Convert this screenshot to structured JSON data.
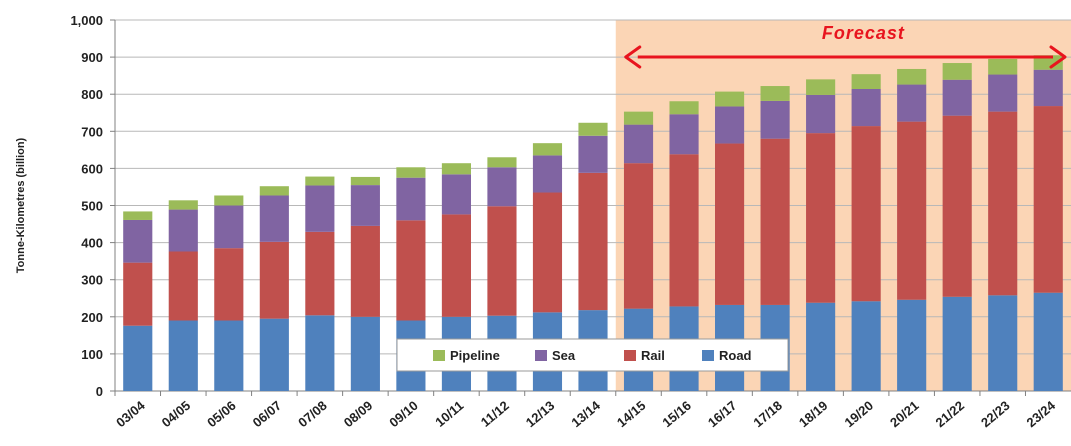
{
  "chart_data": {
    "type": "bar",
    "stacked": true,
    "ylabel": "Tonne-Kilometres (billion)",
    "ylim": [
      0,
      1000
    ],
    "yticks": [
      "0",
      "100",
      "200",
      "300",
      "400",
      "500",
      "600",
      "700",
      "800",
      "900",
      "1,000"
    ],
    "categories": [
      "03/04",
      "04/05",
      "05/06",
      "06/07",
      "07/08",
      "08/09",
      "09/10",
      "10/11",
      "11/12",
      "12/13",
      "13/14",
      "14/15",
      "15/16",
      "16/17",
      "17/18",
      "18/19",
      "19/20",
      "20/21",
      "21/22",
      "22/23",
      "23/24"
    ],
    "series": [
      {
        "name": "Road",
        "color": "#4f81bd",
        "values": [
          176,
          190,
          190,
          195,
          204,
          200,
          190,
          200,
          203,
          212,
          218,
          222,
          228,
          232,
          232,
          238,
          242,
          246,
          254,
          258,
          265
        ]
      },
      {
        "name": "Rail",
        "color": "#c0504d",
        "values": [
          170,
          186,
          195,
          207,
          225,
          245,
          270,
          276,
          295,
          323,
          370,
          392,
          410,
          435,
          448,
          457,
          472,
          480,
          488,
          495,
          503
        ]
      },
      {
        "name": "Sea",
        "color": "#8064a2",
        "values": [
          115,
          113,
          115,
          125,
          125,
          110,
          115,
          108,
          105,
          100,
          100,
          104,
          108,
          100,
          102,
          103,
          100,
          100,
          97,
          100,
          98
        ]
      },
      {
        "name": "Pipeline",
        "color": "#9bbb59",
        "values": [
          23,
          25,
          27,
          25,
          24,
          22,
          28,
          30,
          27,
          33,
          35,
          35,
          35,
          40,
          40,
          42,
          40,
          42,
          45,
          42,
          39
        ]
      }
    ],
    "legend": {
      "placement": "bottom-center",
      "order": [
        "Pipeline",
        "Sea",
        "Rail",
        "Road"
      ]
    },
    "forecast": {
      "label": "Forecast",
      "from_category": "14/15",
      "to_category": "23/24",
      "shade_color": "#fbd5b5",
      "arrow_color": "#e8141e"
    },
    "grid": true,
    "gridline_color": "#b8b8b8"
  }
}
